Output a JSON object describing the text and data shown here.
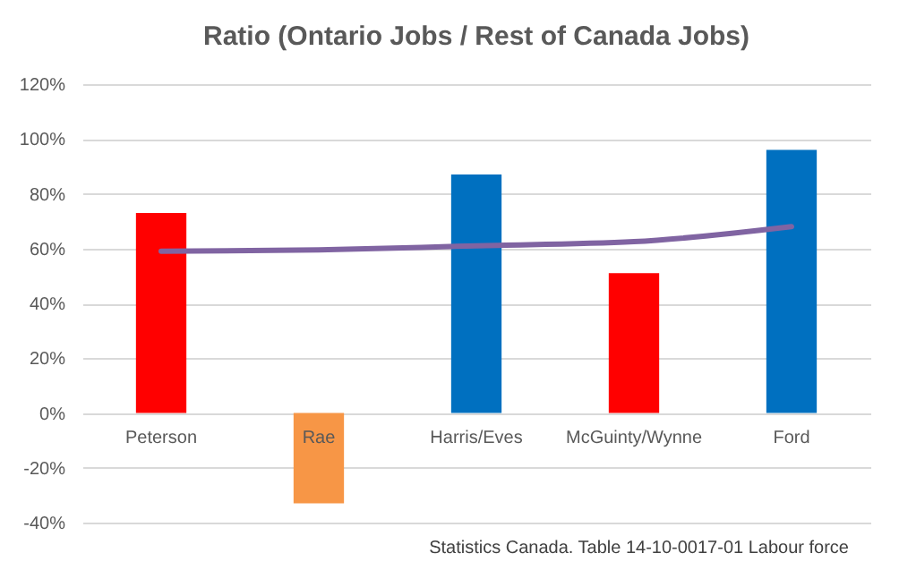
{
  "chart_data": {
    "type": "bar",
    "title": "Ratio (Ontario Jobs / Rest of Canada Jobs)",
    "categories": [
      "Peterson",
      "Rae",
      "Harris/Eves",
      "McGuinty/Wynne",
      "Ford"
    ],
    "series": [
      {
        "colors": [
          "#ff0000",
          "#f79646",
          "#0070c0",
          "#ff0000",
          "#0070c0"
        ],
        "values": [
          73,
          -33,
          87,
          51,
          96
        ]
      },
      {
        "type": "line",
        "color": "#8064a2",
        "values": [
          59,
          59.5,
          61,
          62.5,
          68
        ]
      }
    ],
    "ylim": [
      -40,
      120
    ],
    "yticks": [
      {
        "value": -40,
        "label": "-40%"
      },
      {
        "value": -20,
        "label": "-20%"
      },
      {
        "value": 0,
        "label": "0%"
      },
      {
        "value": 20,
        "label": "20%"
      },
      {
        "value": 40,
        "label": "40%"
      },
      {
        "value": 60,
        "label": "60%"
      },
      {
        "value": 80,
        "label": "80%"
      },
      {
        "value": 100,
        "label": "100%"
      },
      {
        "value": 120,
        "label": "120%"
      }
    ],
    "grid": "y",
    "annotations": [
      "Statistics Canada. Table 14-10-0017-01 Labour force"
    ]
  }
}
